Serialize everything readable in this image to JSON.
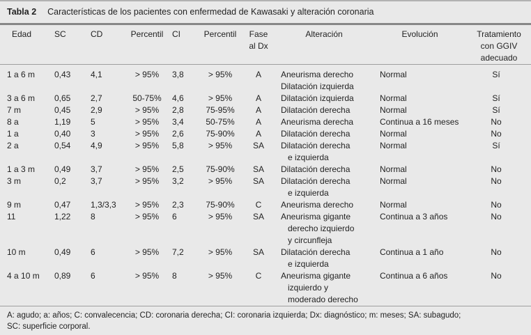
{
  "title": {
    "label": "Tabla 2",
    "caption": "Características de los pacientes con enfermedad de Kawasaki y alteración coronaria"
  },
  "table": {
    "headers": [
      "Edad",
      "SC",
      "CD",
      "Percentil",
      "CI",
      "Percentil",
      "Fase\nal Dx",
      "Alteración",
      "Evolución",
      "Tratamiento\ncon GGIV\nadecuado"
    ],
    "rows": [
      [
        "1 a 6 m",
        "0,43",
        "4,1",
        "> 95%",
        "3,8",
        "> 95%",
        "A",
        "Aneurisma derecho\nDilatación izquierda",
        "Normal",
        "Sí"
      ],
      [
        "3 a 6 m",
        "0,65",
        "2,7",
        "50-75%",
        "4,6",
        "> 95%",
        "A",
        "Dilatación izquierda",
        "Normal",
        "Sí"
      ],
      [
        "7 m",
        "0,45",
        "2,9",
        "> 95%",
        "2,8",
        "75-95%",
        "A",
        "Dilatación derecha",
        "Normal",
        "Sí"
      ],
      [
        "8 a",
        "1,19",
        "5",
        "> 95%",
        "3,4",
        "50-75%",
        "A",
        "Aneurisma derecha",
        "Continua a 16 meses",
        "No"
      ],
      [
        "1 a",
        "0,40",
        "3",
        "> 95%",
        "2,6",
        "75-90%",
        "A",
        "Dilatación derecha",
        "Normal",
        "No"
      ],
      [
        "2 a",
        "0,54",
        "4,9",
        "> 95%",
        "5,8",
        "> 95%",
        "SA",
        "Dilatación derecha\n   e izquierda",
        "Normal",
        "Sí"
      ],
      [
        "1 a 3 m",
        "0,49",
        "3,7",
        "> 95%",
        "2,5",
        "75-90%",
        "SA",
        "Dilatación derecha",
        "Normal",
        "No"
      ],
      [
        "3 m",
        "0,2",
        "3,7",
        "> 95%",
        "3,2",
        "> 95%",
        "SA",
        "Dilatación derecha\n   e izquierda",
        "Normal",
        "No"
      ],
      [
        "9 m",
        "0,47",
        "1,3/3,3",
        "> 95%",
        "2,3",
        "75-90%",
        "C",
        "Aneurisma derecho",
        "Normal",
        "No"
      ],
      [
        "11",
        "1,22",
        "8",
        "> 95%",
        "6",
        "> 95%",
        "SA",
        "Aneurisma gigante\n   derecho izquierdo\n   y circunfleja",
        "Continua a 3 años",
        "No"
      ],
      [
        "10 m",
        "0,49",
        "6",
        "> 95%",
        "7,2",
        "> 95%",
        "SA",
        "Dilatación derecha\n   e izquierda",
        "Continua a 1 año",
        "No"
      ],
      [
        "4 a 10 m",
        "0,89",
        "6",
        "> 95%",
        "8",
        "> 95%",
        "C",
        "Aneurisma gigante\n   izquierdo y\n   moderado derecho",
        "Continua a 6 años",
        "No"
      ]
    ]
  },
  "footnote": "A: agudo; a: años; C: convalecencia; CD: coronaria derecha; CI: coronaria izquierda; Dx: diagnóstico; m: meses; SA: subagudo;\nSC: superficie corporal.",
  "colors": {
    "background": "#e9e9e9",
    "rule_thick": "#878787",
    "rule_thin": "#9e9e9e",
    "text": "#222222"
  }
}
